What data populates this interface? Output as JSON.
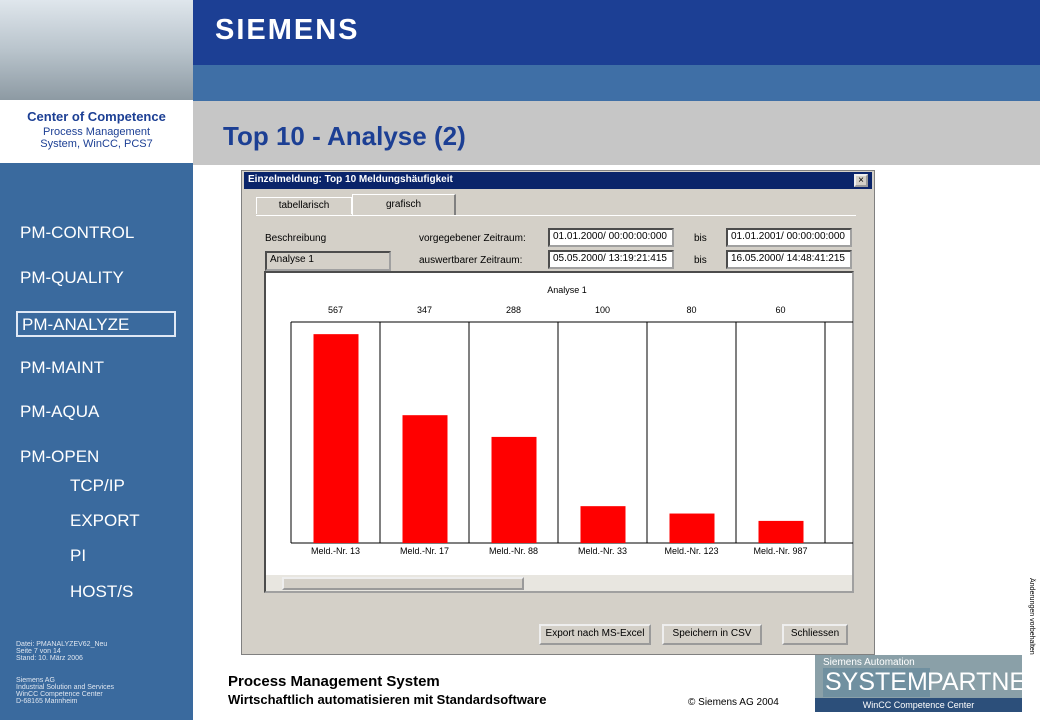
{
  "header": {
    "brand": "SIEMENS"
  },
  "sidebar": {
    "center": {
      "title": "Center of Competence",
      "line1": "Process Management",
      "line2": "System, WinCC, PCS7"
    },
    "nav": [
      "PM-CONTROL",
      "PM-QUALITY",
      "PM-ANALYZE",
      "PM-MAINT",
      "PM-AQUA",
      "PM-OPEN"
    ],
    "subnav": [
      "TCP/IP",
      "EXPORT",
      "PI",
      "HOST/S"
    ],
    "file_info": [
      "Datei: PMANALYZEV62_Neu",
      "Seite 7 von 14",
      "Stand: 10. März 2006"
    ],
    "address": [
      "Siemens AG",
      "Industrial Solution and Services",
      "WinCC Competence Center",
      "D-68165 Mannheim"
    ]
  },
  "slide_title": "Top 10 - Analyse (2)",
  "dialog": {
    "title": "Einzelmeldung:   Top 10 Meldungshäufigkeit",
    "tabs": [
      "tabellarisch",
      "grafisch"
    ],
    "description_label": "Beschreibung",
    "description_value": "Analyse 1",
    "given_label": "vorgegebener Zeitraum:",
    "given_from": "01.01.2000/ 00:00:00:000",
    "given_to": "01.01.2001/ 00:00:00:000",
    "eval_label": "auswertbarer Zeitraum:",
    "eval_from": "05.05.2000/ 13:19:21:415",
    "eval_to": "16.05.2000/ 14:48:41:215",
    "bis": "bis",
    "buttons": [
      "Export nach MS-Excel",
      "Speichern in CSV",
      "Schliessen"
    ]
  },
  "chart_data": {
    "type": "bar",
    "title": "Analyse 1",
    "categories": [
      "Meld.-Nr. 13",
      "Meld.-Nr. 17",
      "Meld.-Nr. 88",
      "Meld.-Nr. 33",
      "Meld.-Nr. 123",
      "Meld.-Nr. 987"
    ],
    "values": [
      567,
      347,
      288,
      100,
      80,
      60
    ],
    "color": "#ff0000",
    "ylim": [
      0,
      600
    ]
  },
  "footer": {
    "title": "Process Management System",
    "subtitle": "Wirtschaftlich automatisieren mit Standardsoftware",
    "copyright": "© Siemens AG 2004"
  },
  "side_note": "Änderungen vorbehalten",
  "logo": {
    "top": "Siemens Automation",
    "system": "SYSTEM",
    "partner": "PARTNER",
    "bottom": "WinCC Competence Center"
  }
}
